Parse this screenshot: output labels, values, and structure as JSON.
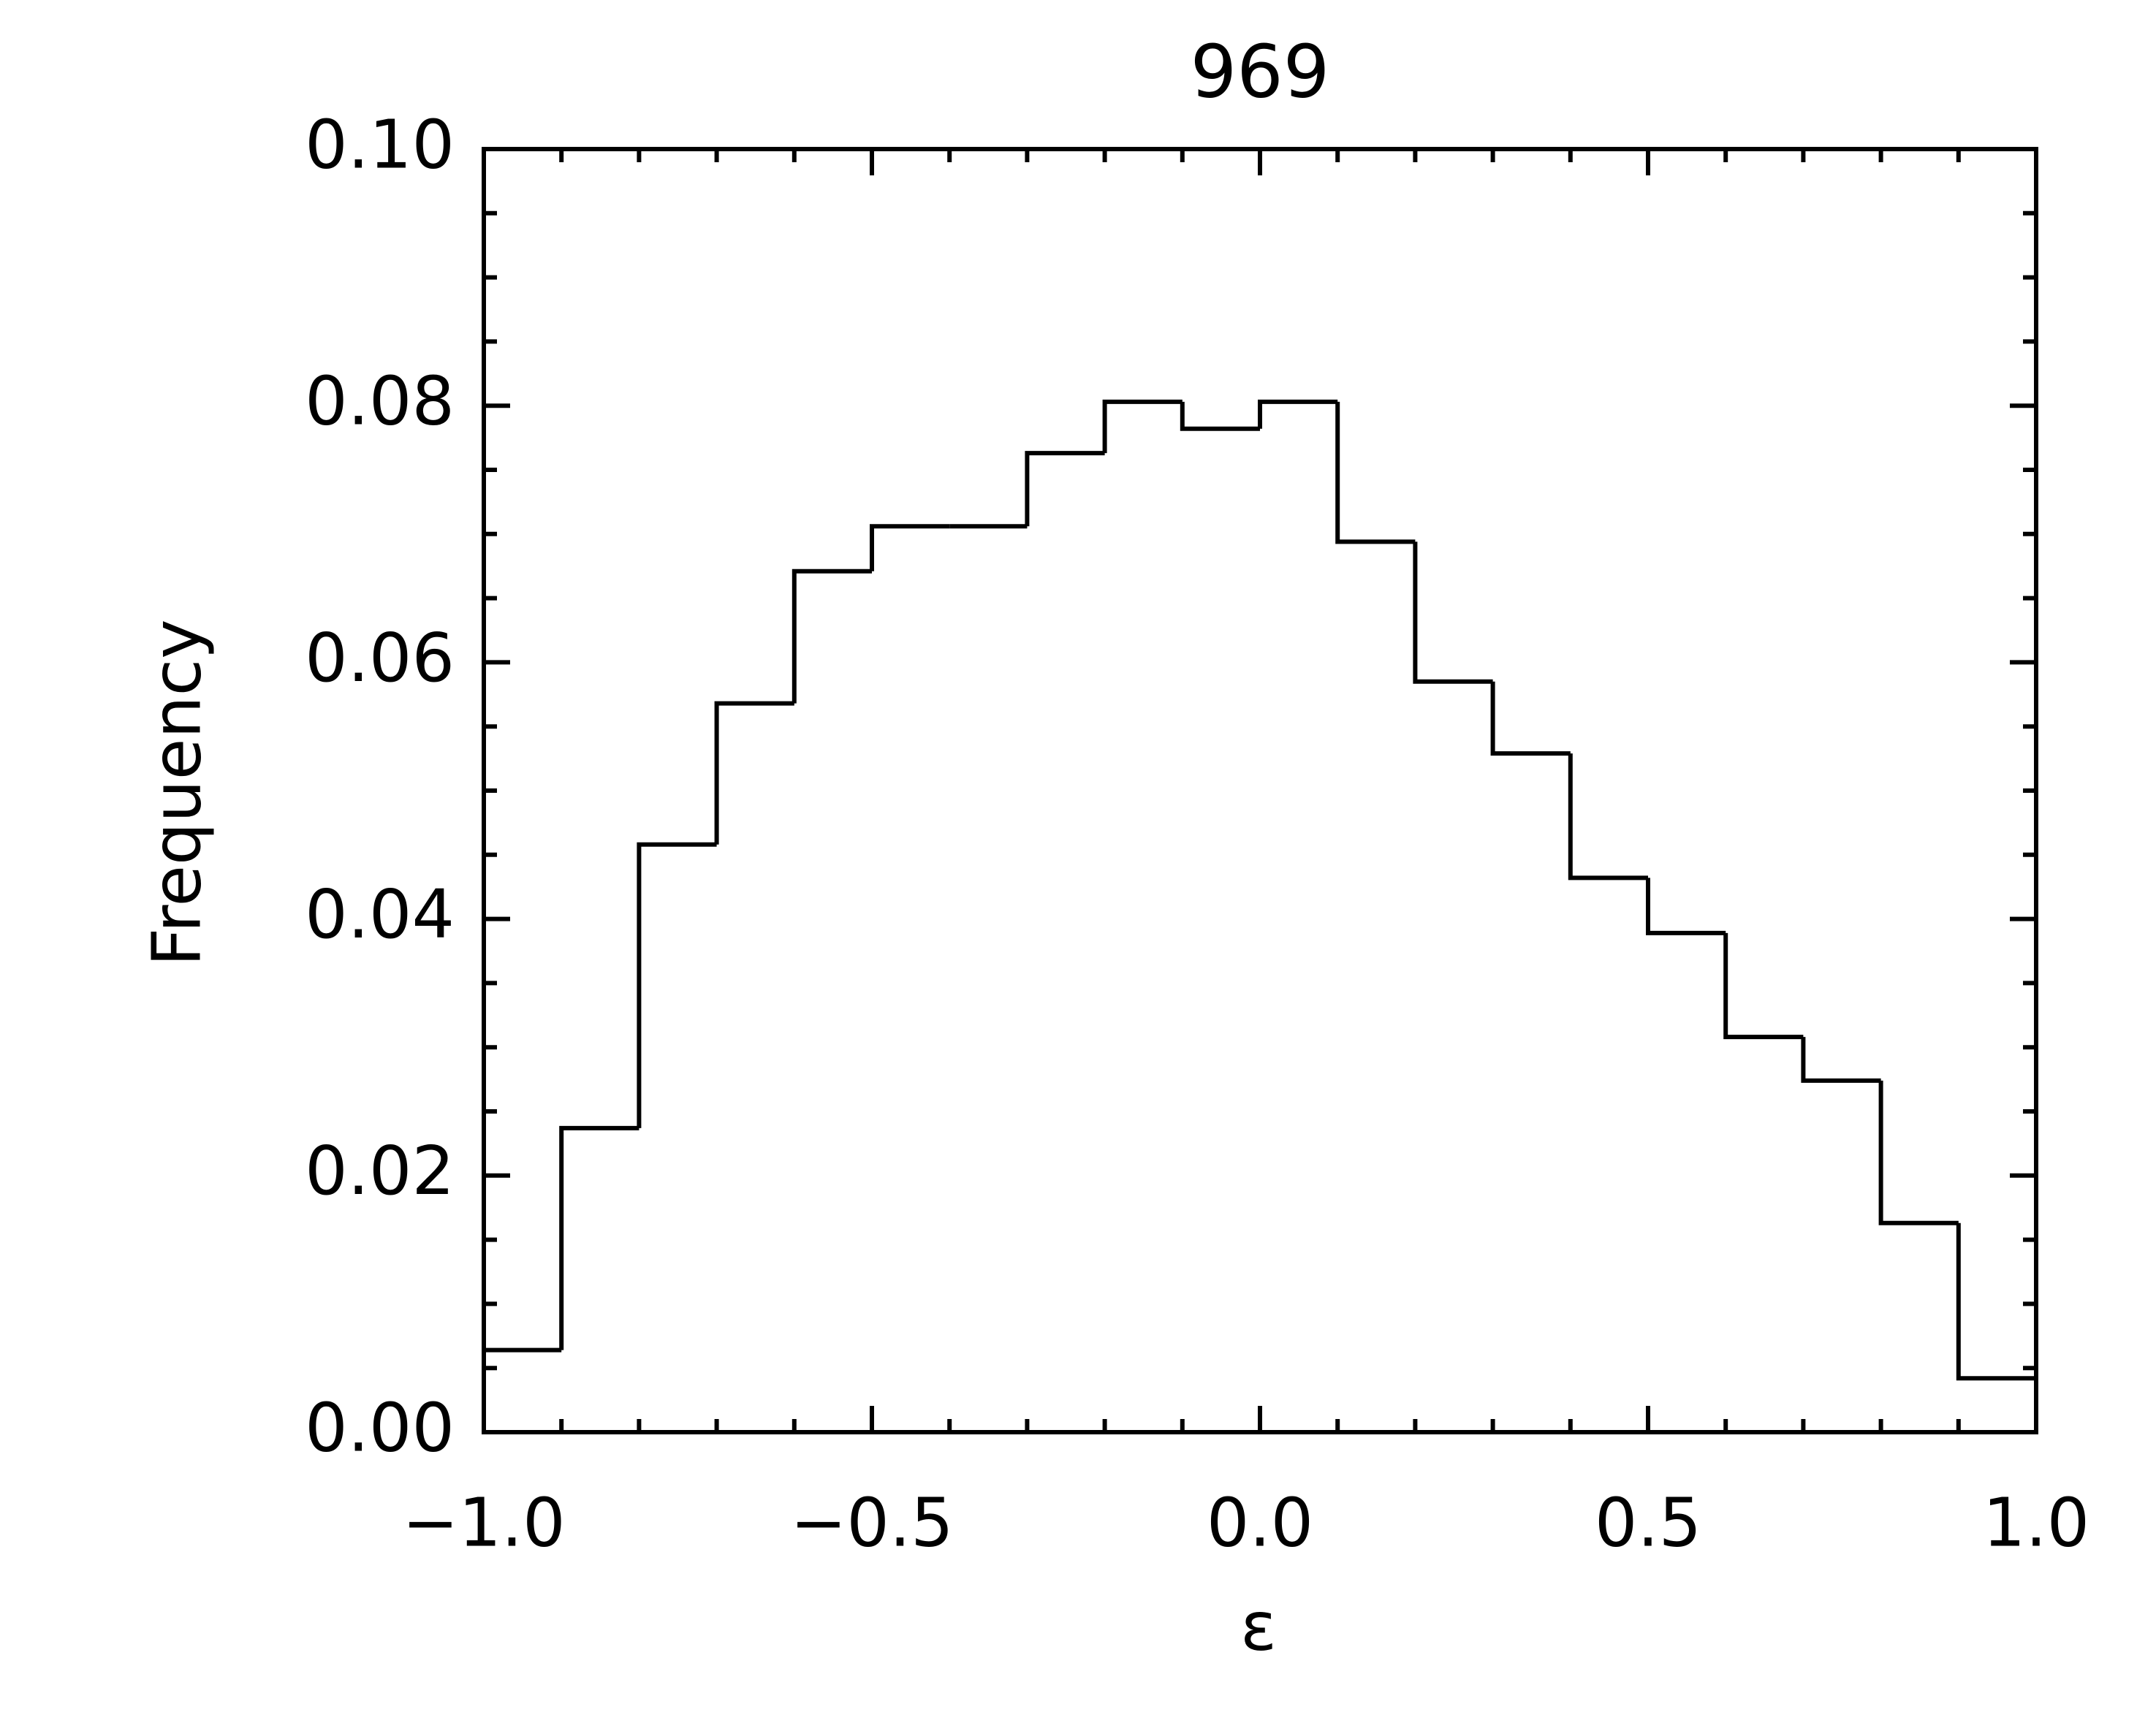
{
  "chart_data": {
    "type": "histogram",
    "title": "969",
    "x_label": "ε",
    "y_label": "Frequency",
    "bins": [
      -1.0,
      -0.9,
      -0.8,
      -0.7,
      -0.6,
      -0.5,
      -0.4,
      -0.3,
      -0.2,
      -0.1,
      0.0,
      0.1,
      0.2,
      0.3,
      0.4,
      0.5,
      0.6,
      0.7,
      0.8,
      0.9,
      1.0
    ],
    "values": [
      0.0064,
      0.0237,
      0.0458,
      0.0568,
      0.0671,
      0.0706,
      0.0706,
      0.0763,
      0.0803,
      0.0782,
      0.0803,
      0.0694,
      0.0585,
      0.0529,
      0.0432,
      0.0389,
      0.0308,
      0.0274,
      0.0163,
      0.0042
    ],
    "color": "#000000",
    "xlim": [
      -1.0,
      1.0
    ],
    "xticks": [
      {
        "value": -1.0,
        "label": "−1.0"
      },
      {
        "value": -0.5,
        "label": "−0.5"
      },
      {
        "value": 0,
        "label": "0.0"
      },
      {
        "value": 0.5,
        "label": "0.5"
      },
      {
        "value": 1.0,
        "label": "1.0"
      }
    ],
    "ylim": [
      0,
      0.1
    ],
    "yticks": [
      {
        "value": 0,
        "label": "0.00"
      },
      {
        "value": 0.02,
        "label": "0.02"
      },
      {
        "value": 0.04,
        "label": "0.04"
      },
      {
        "value": 0.06,
        "label": "0.06"
      },
      {
        "value": 0.08,
        "label": "0.08"
      },
      {
        "value": 0.1,
        "label": "0.10"
      }
    ]
  }
}
